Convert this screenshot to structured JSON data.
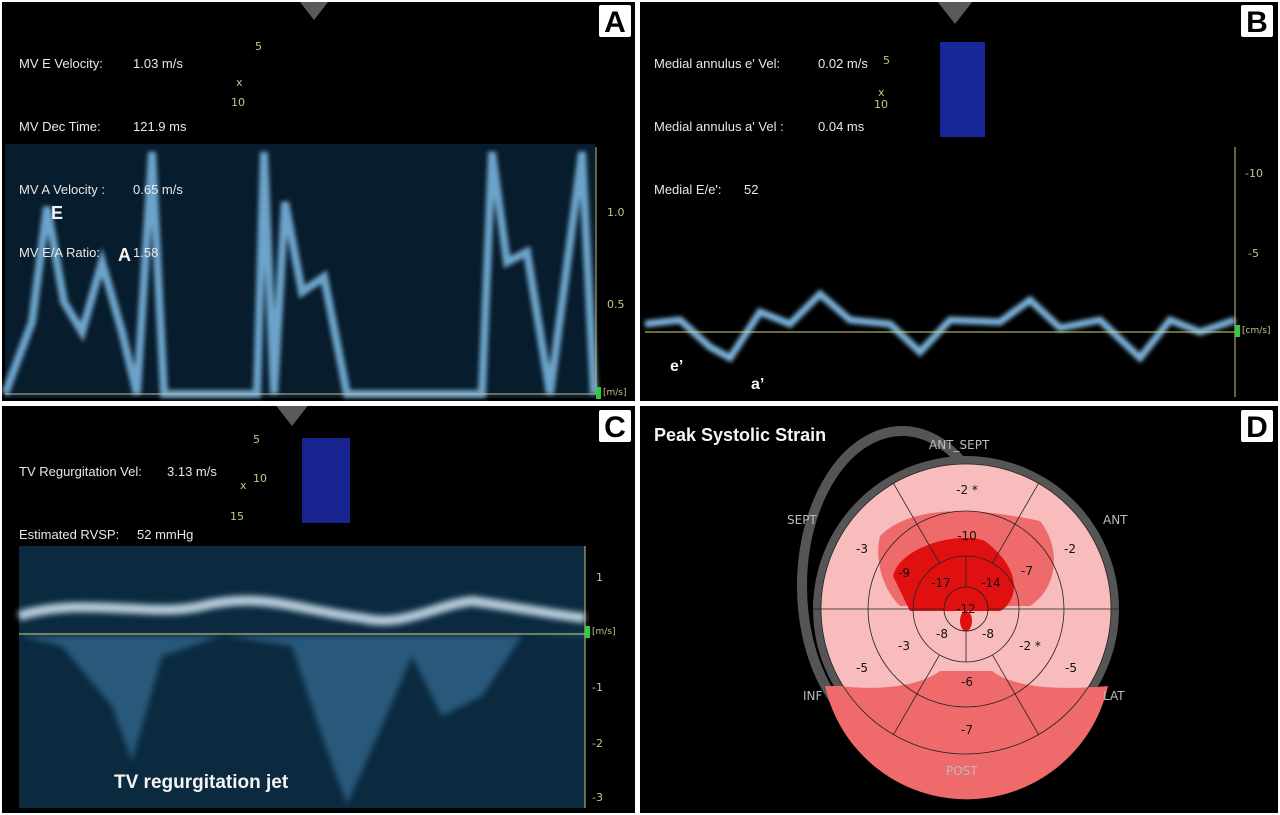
{
  "panel_a": {
    "letter": "A",
    "measurements": [
      {
        "label": "MV E Velocity:",
        "value": "1.03 m/s"
      },
      {
        "label": "MV Dec Time:",
        "value": "121.9 ms"
      },
      {
        "label": "MV A Velocity :",
        "value": "0.65 m/s"
      },
      {
        "label": "MV E/A Ratio:",
        "value": "1.58"
      }
    ],
    "wave_labels": {
      "e": "E",
      "a": "A"
    },
    "depth_marks": {
      "d5": "5",
      "d10": "10",
      "x": "x"
    },
    "ticks": [
      "1.0",
      "0.5"
    ],
    "unit": "[m/s]"
  },
  "panel_b": {
    "letter": "B",
    "measurements": [
      {
        "label": "Medial annulus e' Vel:",
        "value": "0.02 m/s"
      },
      {
        "label": "Medial annulus a' Vel :",
        "value": "0.04 ms"
      },
      {
        "label": "Medial E/e':",
        "value": "52"
      }
    ],
    "wave_labels": {
      "e": "e’",
      "a": "a’"
    },
    "depth_marks": {
      "d5": "5",
      "d10": "10",
      "x": "x"
    },
    "ticks": [
      "-10",
      "-5"
    ],
    "unit": "[cm/s]"
  },
  "panel_c": {
    "letter": "C",
    "measurements": [
      {
        "label": "TV Regurgitation Vel:",
        "value": "3.13 m/s"
      },
      {
        "label": "Estimated RVSP:",
        "value": "52 mmHg"
      }
    ],
    "jet_label": "TV regurgitation jet",
    "depth_marks": {
      "d5": "5",
      "d10": "10",
      "d15": "15",
      "x": "x"
    },
    "ticks": [
      "1",
      "-1",
      "-2",
      "-3"
    ],
    "unit": "[m/s]"
  },
  "panel_d": {
    "letter": "D",
    "title": "Peak Systolic Strain",
    "segment_labels": {
      "ant_sept": "ANT_SEPT",
      "ant": "ANT",
      "sept": "SEPT",
      "inf": "INF",
      "lat": "LAT",
      "post": "POST"
    },
    "basal": [
      "-2 *",
      "-2",
      "-5",
      "-7",
      "-5",
      "-3"
    ],
    "mid": [
      "-10",
      "-7",
      "-2 *",
      "-6",
      "-3",
      "-9"
    ],
    "apical": [
      "-14",
      "-8",
      "-8",
      "-17"
    ],
    "apex": "-12",
    "colors": {
      "mild": "#f8bcbc",
      "moderate": "#ef6a6a",
      "severe": "#e01010",
      "ring": "#555555"
    }
  }
}
